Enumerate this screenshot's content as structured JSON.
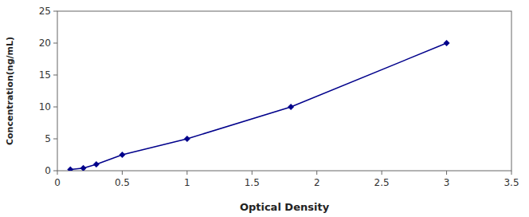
{
  "chart_data": {
    "type": "line",
    "x": [
      0.1,
      0.2,
      0.3,
      0.5,
      1.0,
      1.8,
      3.0
    ],
    "values": [
      0.2,
      0.4,
      1.0,
      2.5,
      5.0,
      10.0,
      20.0
    ],
    "xlabel": "Optical Density",
    "ylabel": "Concentration(ng/mL)",
    "xlim": [
      0,
      3.5
    ],
    "ylim": [
      0,
      25
    ],
    "xticks": [
      0,
      0.5,
      1,
      1.5,
      2,
      2.5,
      3,
      3.5
    ],
    "yticks": [
      0,
      5,
      10,
      15,
      20,
      25
    ],
    "color": "#00008B",
    "marker": "diamond",
    "grid": false
  }
}
